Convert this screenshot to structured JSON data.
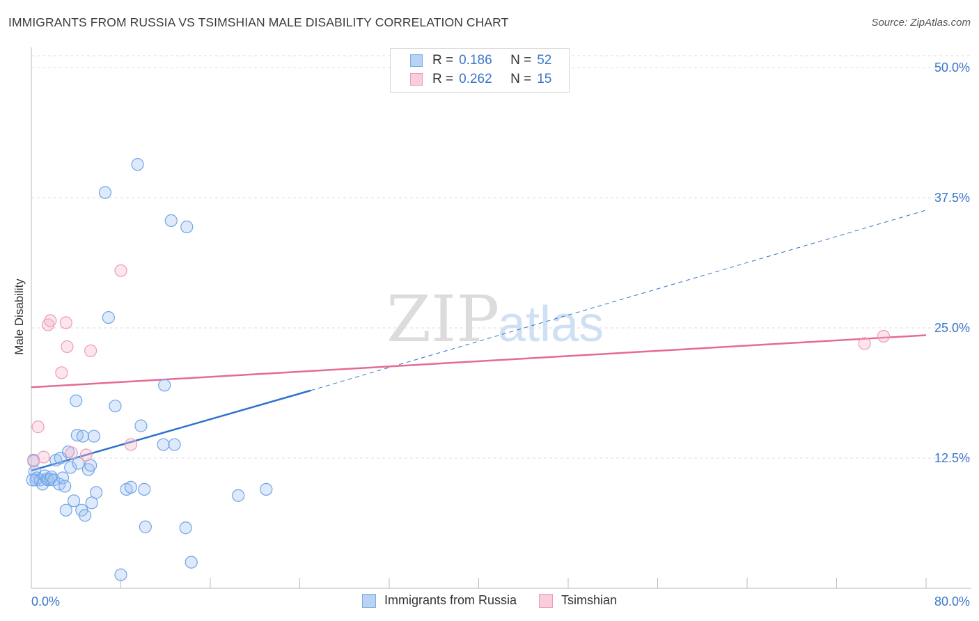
{
  "header": {
    "title": "IMMIGRANTS FROM RUSSIA VS TSIMSHIAN MALE DISABILITY CORRELATION CHART",
    "source": "Source: ZipAtlas.com"
  },
  "watermark": {
    "zip": "ZIP",
    "atlas": "atlas"
  },
  "colors": {
    "blue": "#6fa4e8",
    "blue_fill": "rgba(160,196,240,0.35)",
    "blue_line": "#2e72cc",
    "pink": "#ee9ab5",
    "pink_fill": "rgba(245,180,200,0.35)",
    "pink_line": "#e56a94",
    "axis_text": "#3a76c8",
    "grid": "#dddddd"
  },
  "legend": {
    "rows": [
      {
        "r_label": "R =",
        "r_value": "0.186",
        "n_label": "N =",
        "n_value": "52",
        "series": "blue"
      },
      {
        "r_label": "R =",
        "r_value": "0.262",
        "n_label": "N =",
        "n_value": "15",
        "series": "pink"
      }
    ]
  },
  "chart_data": {
    "type": "scatter",
    "title": "IMMIGRANTS FROM RUSSIA VS TSIMSHIAN MALE DISABILITY CORRELATION CHART",
    "xlabel": "",
    "ylabel": "Male Disability",
    "xlim": [
      0,
      80
    ],
    "ylim": [
      0,
      50
    ],
    "x_tick_labels": [
      "0.0%",
      "80.0%"
    ],
    "y_tick_labels": [
      "12.5%",
      "25.0%",
      "37.5%",
      "50.0%"
    ],
    "y_ticks": [
      12.5,
      25.0,
      37.5,
      50.0
    ],
    "x_minor_ticks": [
      8,
      16,
      24,
      32,
      40,
      48,
      56,
      64,
      72,
      80
    ],
    "series": [
      {
        "name": "Immigrants from Russia",
        "color": "blue",
        "points": [
          [
            0.2,
            12.3
          ],
          [
            0.3,
            11.2
          ],
          [
            0.4,
            10.4
          ],
          [
            0.5,
            10.6
          ],
          [
            0.8,
            10.4
          ],
          [
            1.0,
            10.0
          ],
          [
            1.2,
            10.8
          ],
          [
            1.4,
            10.5
          ],
          [
            1.5,
            10.4
          ],
          [
            1.7,
            10.5
          ],
          [
            1.8,
            10.7
          ],
          [
            2.0,
            10.4
          ],
          [
            2.2,
            12.3
          ],
          [
            2.5,
            10.0
          ],
          [
            2.6,
            12.5
          ],
          [
            2.8,
            10.6
          ],
          [
            3.0,
            9.8
          ],
          [
            3.1,
            7.5
          ],
          [
            3.3,
            13.1
          ],
          [
            3.5,
            11.6
          ],
          [
            3.8,
            8.4
          ],
          [
            4.0,
            18.0
          ],
          [
            4.1,
            14.7
          ],
          [
            4.2,
            12.0
          ],
          [
            4.5,
            7.5
          ],
          [
            4.6,
            14.6
          ],
          [
            4.8,
            7.0
          ],
          [
            5.1,
            11.4
          ],
          [
            5.3,
            11.8
          ],
          [
            5.4,
            8.2
          ],
          [
            5.6,
            14.6
          ],
          [
            5.8,
            9.2
          ],
          [
            6.6,
            38.0
          ],
          [
            6.9,
            26.0
          ],
          [
            7.5,
            17.5
          ],
          [
            8.0,
            1.3
          ],
          [
            8.5,
            9.5
          ],
          [
            8.9,
            9.7
          ],
          [
            9.5,
            40.7
          ],
          [
            9.8,
            15.6
          ],
          [
            10.1,
            9.5
          ],
          [
            10.2,
            5.9
          ],
          [
            11.8,
            13.8
          ],
          [
            11.9,
            19.5
          ],
          [
            12.5,
            35.3
          ],
          [
            12.8,
            13.8
          ],
          [
            13.9,
            34.7
          ],
          [
            13.8,
            5.8
          ],
          [
            14.3,
            2.5
          ],
          [
            18.5,
            8.9
          ],
          [
            21.0,
            9.5
          ],
          [
            0.1,
            10.4
          ]
        ],
        "trend": {
          "x0": 0,
          "y0": 11.3,
          "x1": 25,
          "y1": 19.0,
          "dashed_to_x": 80,
          "dashed_to_y": 36.3
        }
      },
      {
        "name": "Tsimshian",
        "color": "pink",
        "points": [
          [
            0.2,
            12.2
          ],
          [
            0.6,
            15.5
          ],
          [
            1.1,
            12.6
          ],
          [
            1.5,
            25.3
          ],
          [
            1.7,
            25.7
          ],
          [
            2.7,
            20.7
          ],
          [
            3.1,
            25.5
          ],
          [
            3.2,
            23.2
          ],
          [
            3.6,
            13.0
          ],
          [
            4.9,
            12.8
          ],
          [
            5.3,
            22.8
          ],
          [
            8.0,
            30.5
          ],
          [
            8.9,
            13.8
          ],
          [
            74.5,
            23.5
          ],
          [
            76.2,
            24.2
          ]
        ],
        "trend": {
          "x0": 0,
          "y0": 19.3,
          "x1": 80,
          "y1": 24.3
        }
      }
    ],
    "grid": true,
    "legend_position": "top-center"
  },
  "bottom_legend": {
    "items": [
      {
        "label": "Immigrants from Russia",
        "series": "blue"
      },
      {
        "label": "Tsimshian",
        "series": "pink"
      }
    ]
  }
}
